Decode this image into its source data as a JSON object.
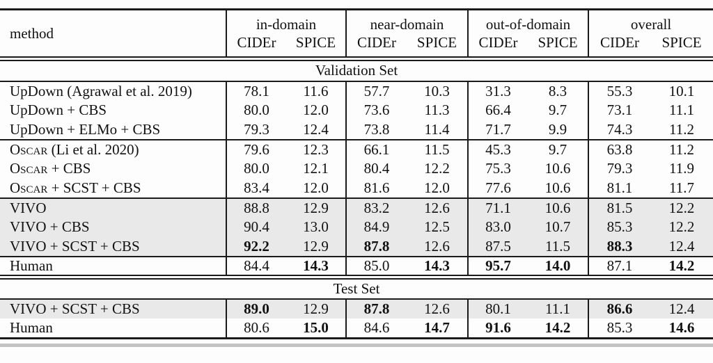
{
  "table": {
    "method_header": "method",
    "groups": [
      {
        "id": "in-domain",
        "name": "in-domain",
        "metrics": [
          "CIDEr",
          "SPICE"
        ]
      },
      {
        "id": "near-domain",
        "name": "near-domain",
        "metrics": [
          "CIDEr",
          "SPICE"
        ]
      },
      {
        "id": "out-of-domain",
        "name": "out-of-domain",
        "metrics": [
          "CIDEr",
          "SPICE"
        ]
      },
      {
        "id": "overall",
        "name": "overall",
        "metrics": [
          "CIDEr",
          "SPICE"
        ]
      }
    ],
    "sections": [
      {
        "title": "Validation Set",
        "row_groups": [
          {
            "shaded": false,
            "rule_above": true,
            "rows": [
              {
                "sc": "",
                "method": "UpDown (Agrawal et al. 2019)",
                "values": [
                  "78.1",
                  "11.6",
                  "57.7",
                  "10.3",
                  "31.3",
                  "8.3",
                  "55.3",
                  "10.1"
                ],
                "bold": []
              },
              {
                "sc": "",
                "method": "UpDown + CBS",
                "values": [
                  "80.0",
                  "12.0",
                  "73.6",
                  "11.3",
                  "66.4",
                  "9.7",
                  "73.1",
                  "11.1"
                ],
                "bold": []
              },
              {
                "sc": "",
                "method": "UpDown + ELMo + CBS",
                "values": [
                  "79.3",
                  "12.4",
                  "73.8",
                  "11.4",
                  "71.7",
                  "9.9",
                  "74.3",
                  "11.2"
                ],
                "bold": []
              }
            ]
          },
          {
            "shaded": false,
            "rule_above": true,
            "rows": [
              {
                "sc": "Oscar",
                "method": " (Li et al. 2020)",
                "values": [
                  "79.6",
                  "12.3",
                  "66.1",
                  "11.5",
                  "45.3",
                  "9.7",
                  "63.8",
                  "11.2"
                ],
                "bold": []
              },
              {
                "sc": "Oscar",
                "method": " + CBS",
                "values": [
                  "80.0",
                  "12.1",
                  "80.4",
                  "12.2",
                  "75.3",
                  "10.6",
                  "79.3",
                  "11.9"
                ],
                "bold": []
              },
              {
                "sc": "Oscar",
                "method": " + SCST + CBS",
                "values": [
                  "83.4",
                  "12.0",
                  "81.6",
                  "12.0",
                  "77.6",
                  "10.6",
                  "81.1",
                  "11.7"
                ],
                "bold": []
              }
            ]
          },
          {
            "shaded": true,
            "rule_above": true,
            "rows": [
              {
                "sc": "",
                "method": "VIVO",
                "values": [
                  "88.8",
                  "12.9",
                  "83.2",
                  "12.6",
                  "71.1",
                  "10.6",
                  "81.5",
                  "12.2"
                ],
                "bold": []
              },
              {
                "sc": "",
                "method": "VIVO + CBS",
                "values": [
                  "90.4",
                  "13.0",
                  "84.9",
                  "12.5",
                  "83.0",
                  "10.7",
                  "85.3",
                  "12.2"
                ],
                "bold": []
              },
              {
                "sc": "",
                "method": "VIVO + SCST + CBS",
                "values": [
                  "92.2",
                  "12.9",
                  "87.8",
                  "12.6",
                  "87.5",
                  "11.5",
                  "88.3",
                  "12.4"
                ],
                "bold": [
                  0,
                  2,
                  6
                ]
              }
            ]
          },
          {
            "shaded": false,
            "rule_above": true,
            "rows": [
              {
                "sc": "",
                "method": "Human",
                "values": [
                  "84.4",
                  "14.3",
                  "85.0",
                  "14.3",
                  "95.7",
                  "14.0",
                  "87.1",
                  "14.2"
                ],
                "bold": [
                  1,
                  3,
                  4,
                  5,
                  7
                ]
              }
            ]
          }
        ]
      },
      {
        "title": "Test Set",
        "row_groups": [
          {
            "shaded": true,
            "rule_above": true,
            "rows": [
              {
                "sc": "",
                "method": "VIVO + SCST + CBS",
                "values": [
                  "89.0",
                  "12.9",
                  "87.8",
                  "12.6",
                  "80.1",
                  "11.1",
                  "86.6",
                  "12.4"
                ],
                "bold": [
                  0,
                  2,
                  6
                ]
              }
            ]
          },
          {
            "shaded": false,
            "rule_above": false,
            "rows": [
              {
                "sc": "",
                "method": "Human",
                "values": [
                  "80.6",
                  "15.0",
                  "84.6",
                  "14.7",
                  "91.6",
                  "14.2",
                  "85.3",
                  "14.6"
                ],
                "bold": [
                  1,
                  3,
                  4,
                  5,
                  7
                ]
              }
            ]
          }
        ]
      }
    ],
    "colors": {
      "rule": "#1a1a1a",
      "shaded_row": "#e9e9e9",
      "text": "#111111",
      "bottom_shadow": "#c3c3c3"
    }
  }
}
